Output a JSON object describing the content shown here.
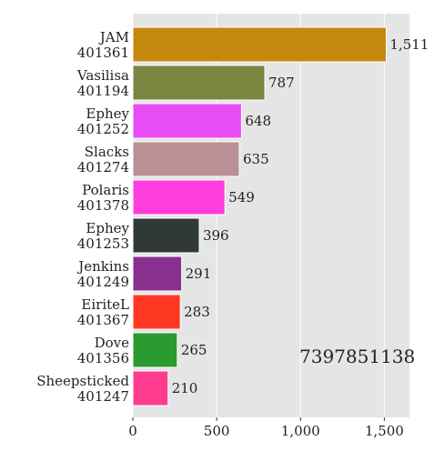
{
  "chart_data": {
    "type": "bar",
    "orientation": "horizontal",
    "categories": [
      {
        "name": "JAM",
        "id": "401361"
      },
      {
        "name": "Vasilisa",
        "id": "401194"
      },
      {
        "name": "Ephey",
        "id": "401252"
      },
      {
        "name": "Slacks",
        "id": "401274"
      },
      {
        "name": "Polaris",
        "id": "401378"
      },
      {
        "name": "Ephey",
        "id": "401253"
      },
      {
        "name": "Jenkins",
        "id": "401249"
      },
      {
        "name": "EiriteL",
        "id": "401367"
      },
      {
        "name": "Dove",
        "id": "401356"
      },
      {
        "name": "Sheepsticked",
        "id": "401247"
      }
    ],
    "values": [
      1511,
      787,
      648,
      635,
      549,
      396,
      291,
      283,
      265,
      210
    ],
    "value_labels": [
      "1,511",
      "787",
      "648",
      "635",
      "549",
      "396",
      "291",
      "283",
      "265",
      "210"
    ],
    "colors": [
      "#c4880f",
      "#7a8540",
      "#e84df5",
      "#bb8f96",
      "#ff3ddc",
      "#313838",
      "#87308d",
      "#ff3924",
      "#2a9b2e",
      "#ff3b8f"
    ],
    "xlim": [
      0,
      1650
    ],
    "xticks": [
      0,
      500,
      1000,
      1500
    ],
    "xtick_labels": [
      "0",
      "500",
      "1,000",
      "1,500"
    ],
    "title": "",
    "xlabel": "",
    "ylabel": "",
    "grid": true,
    "background": "#e5e5e5",
    "annotation": "7397851138"
  }
}
